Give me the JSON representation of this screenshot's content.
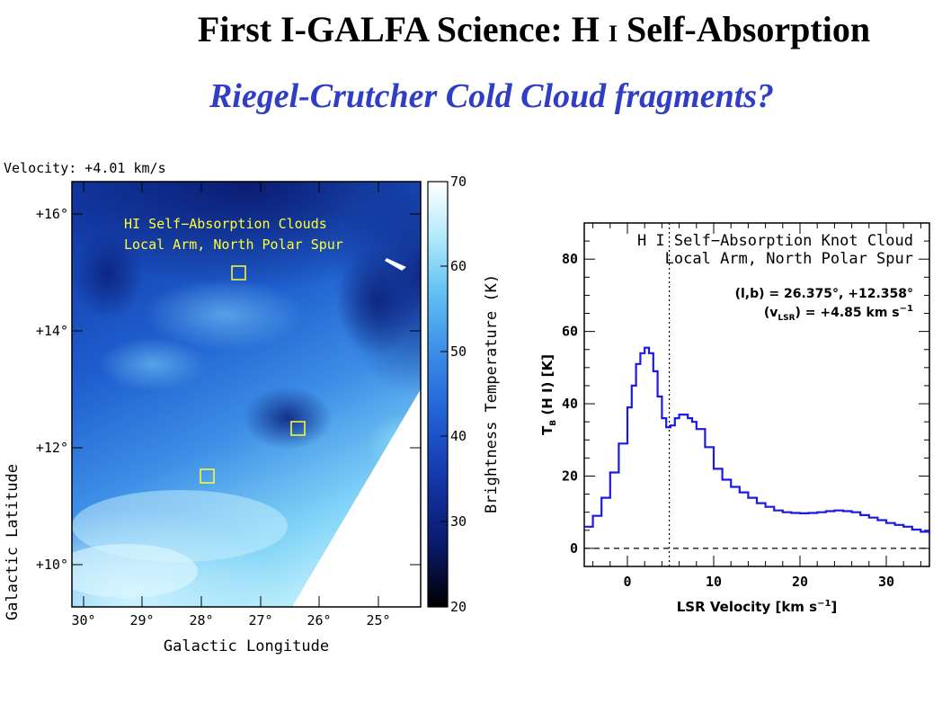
{
  "slide": {
    "title_prefix": "First I-GALFA Science: H",
    "title_roman": "I",
    "title_suffix": "Self-Absorption",
    "subtitle": "Riegel-Crutcher Cold Cloud fragments?"
  },
  "colors": {
    "title": "#000000",
    "subtitle": "#2f3ec4",
    "spectrum_line": "#1a1ae6",
    "map_annotation": "#ffff33"
  },
  "map": {
    "velocity_label": "Velocity: +4.01 km/s",
    "annotation_line1": "HI Self−Absorption Clouds",
    "annotation_line2": "Local Arm, North Polar Spur",
    "xlabel": "Galactic Longitude",
    "ylabel": "Galactic Latitude",
    "x_ticks": [
      "30°",
      "29°",
      "28°",
      "27°",
      "26°",
      "25°"
    ],
    "y_ticks": [
      "+16°",
      "+14°",
      "+12°",
      "+10°"
    ],
    "colorbar_label": "Brightness Temperature (K)",
    "colorbar_ticks": [
      "70",
      "60",
      "50",
      "40",
      "30",
      "20"
    ],
    "colormap": [
      "#000000",
      "#0a1a6e",
      "#1436a8",
      "#2160d6",
      "#3a8ee8",
      "#67c4f5",
      "#b9ecfb",
      "#ffffff"
    ]
  },
  "chart_data": {
    "type": "line",
    "title_line1": "H I Self−Absorption Knot Cloud",
    "title_line2": "Local Arm, North Polar Spur",
    "position_label": "(l,b) = 26.375°, +12.358°",
    "velocity_label_prefix": "(v",
    "velocity_label_sub": "LSR",
    "velocity_label_suffix": ") = +4.85 km s",
    "velocity_label_sup": "−1",
    "xlabel": "LSR Velocity [km s",
    "xlabel_sup": "−1",
    "xlabel_end": "]",
    "ylabel_T": "T",
    "ylabel_B": "B",
    "ylabel_rest": " (H I) [K]",
    "xlim": [
      -5,
      35
    ],
    "ylim": [
      -5,
      90
    ],
    "x_ticks": [
      0,
      10,
      20,
      30
    ],
    "y_ticks": [
      0,
      20,
      40,
      60,
      80
    ],
    "marker_velocity": 4.85,
    "zero_line": 0,
    "series": [
      {
        "x": [
          -5,
          -4,
          -3,
          -2,
          -1,
          0,
          0.5,
          1,
          1.5,
          2,
          2.5,
          3,
          3.5,
          4,
          4.5,
          5,
          5.5,
          6,
          6.5,
          7,
          7.5,
          8,
          9,
          10,
          11,
          12,
          13,
          14,
          15,
          16,
          17,
          18,
          19,
          20,
          21,
          22,
          23,
          24,
          25,
          26,
          27,
          28,
          29,
          30,
          31,
          32,
          33,
          34,
          35
        ],
        "y": [
          6,
          9,
          14,
          21,
          29,
          39,
          45,
          51,
          54,
          55.5,
          54,
          49,
          42,
          36,
          33.5,
          34,
          36,
          37,
          37,
          36,
          35,
          33,
          28,
          22,
          19,
          17,
          15.5,
          14,
          12.5,
          11.5,
          10.5,
          10,
          9.8,
          9.7,
          9.8,
          10,
          10.3,
          10.5,
          10.3,
          10,
          9.2,
          8.5,
          7.8,
          7,
          6.5,
          6,
          5.2,
          4.6,
          4
        ]
      }
    ]
  }
}
